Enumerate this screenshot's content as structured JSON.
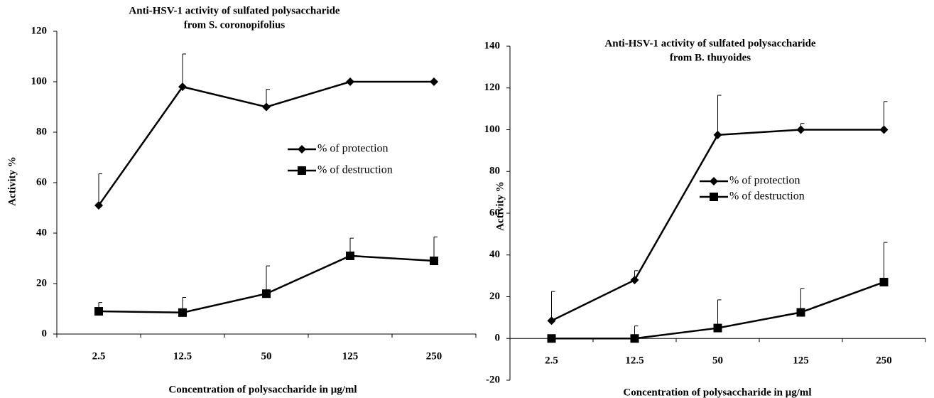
{
  "chart_data": [
    {
      "type": "line",
      "title": "Anti-HSV-1 activity of sulfated polysaccharide",
      "subtitle": "from S. coronopifolius",
      "x_label": "Concentration of polysaccharide in  μg/ml",
      "y_label": "Activity %",
      "categories": [
        "2.5",
        "12.5",
        "50",
        "125",
        "250"
      ],
      "ylim": [
        0,
        120
      ],
      "yticks": [
        0,
        20,
        40,
        60,
        80,
        100,
        120
      ],
      "series": [
        {
          "name": "% of protection",
          "color": "#000000",
          "marker": "diamond",
          "values": [
            51,
            98,
            90,
            100,
            100
          ],
          "errors": [
            12.5,
            13,
            7,
            0,
            0
          ]
        },
        {
          "name": "% of destruction",
          "color": "#000000",
          "marker": "square",
          "values": [
            9,
            8.5,
            16,
            31,
            29
          ],
          "errors": [
            3.5,
            6,
            11,
            7,
            9.5
          ]
        }
      ]
    },
    {
      "type": "line",
      "title": "Anti-HSV-1 activity of sulfated polysaccharide",
      "subtitle": "from B. thuyoides",
      "x_label": "Concentration of polysaccharide in  μg/ml",
      "y_label": "Activity %",
      "categories": [
        "2.5",
        "12.5",
        "50",
        "125",
        "250"
      ],
      "ylim": [
        -20,
        140
      ],
      "yticks": [
        -20,
        0,
        20,
        40,
        60,
        80,
        100,
        120,
        140
      ],
      "series": [
        {
          "name": "% of protection",
          "color": "#000000",
          "marker": "diamond",
          "values": [
            8.5,
            28,
            97.5,
            100,
            100
          ],
          "errors": [
            14,
            4.5,
            19,
            3,
            13.5
          ]
        },
        {
          "name": "% of destruction",
          "color": "#000000",
          "marker": "square",
          "values": [
            0,
            0,
            5,
            12.5,
            27
          ],
          "errors": [
            0,
            6,
            13.5,
            11.5,
            19
          ]
        }
      ]
    }
  ]
}
